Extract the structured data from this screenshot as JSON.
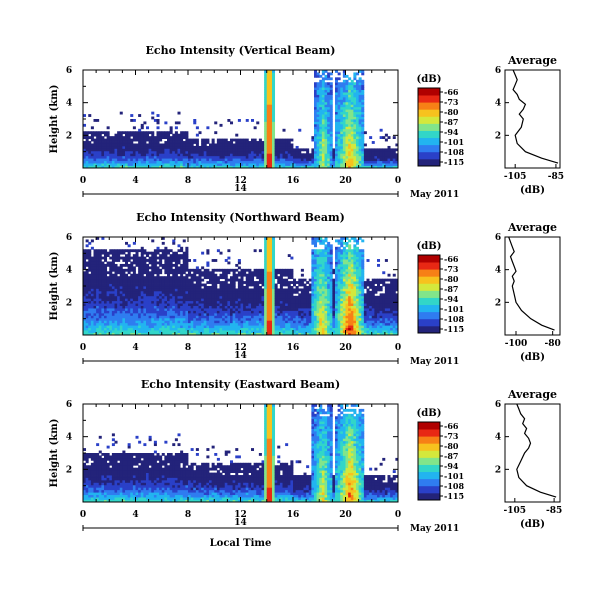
{
  "figure": {
    "time_axis_label": "Local Time",
    "date_label": "May 2011",
    "day_label": "14",
    "colorbar_unit": "(dB)",
    "colorbar_ticks": [
      "-66",
      "-73",
      "-80",
      "-87",
      "-94",
      "-101",
      "-108",
      "-115"
    ],
    "colorscale": [
      "#23237a",
      "#2a40c8",
      "#2f7cf0",
      "#22b4f0",
      "#32d6c8",
      "#82e58a",
      "#d4e83c",
      "#f7c21e",
      "#f78016",
      "#e82814",
      "#b00000"
    ]
  },
  "chart_data": [
    {
      "type": "heatmap",
      "title": "Echo Intensity (Vertical Beam)",
      "ylabel": "Height (km)",
      "xlabel": "",
      "x_ticks": [
        "0",
        "4",
        "8",
        "12",
        "16",
        "20",
        "0"
      ],
      "y_ticks": [
        "6",
        "4",
        "2"
      ],
      "xlim": [
        0,
        24
      ],
      "ylim": [
        0,
        6
      ],
      "clim": [
        -115,
        -66
      ],
      "beam": "vertical",
      "features": [
        {
          "kind": "background",
          "top_km": [
            2.2,
            1.8,
            1.2
          ],
          "noise": 0.55
        },
        {
          "kind": "rain",
          "start_h": 13.8,
          "end_h": 14.6,
          "peak": -66
        },
        {
          "kind": "cloud",
          "start_h": 17.6,
          "end_h": 19.0,
          "peak": -87
        },
        {
          "kind": "cloud",
          "start_h": 19.3,
          "end_h": 21.4,
          "peak": -80
        }
      ]
    },
    {
      "type": "line",
      "title": "Average",
      "xlabel": "(dB)",
      "x_ticks": [
        "-105",
        "-85"
      ],
      "y_ticks": [
        "6",
        "4",
        "2"
      ],
      "xlim": [
        -110,
        -83
      ],
      "ylim": [
        0,
        6
      ],
      "x": [
        -84,
        -92,
        -100,
        -104,
        -105,
        -102,
        -101,
        -103,
        -101,
        -100,
        -103,
        -104,
        -106,
        -105,
        -104,
        -105,
        -106
      ],
      "y": [
        0.3,
        0.6,
        1.0,
        1.5,
        2.0,
        2.5,
        3.0,
        3.3,
        3.6,
        3.9,
        4.2,
        4.5,
        4.8,
        5.1,
        5.4,
        5.7,
        6.0
      ]
    },
    {
      "type": "heatmap",
      "title": "Echo Intensity (Northward Beam)",
      "ylabel": "Height (km)",
      "xlabel": "",
      "x_ticks": [
        "0",
        "4",
        "8",
        "12",
        "16",
        "20",
        "0"
      ],
      "y_ticks": [
        "6",
        "4",
        "2"
      ],
      "xlim": [
        0,
        24
      ],
      "ylim": [
        0,
        6
      ],
      "clim": [
        -115,
        -66
      ],
      "beam": "northward",
      "features": [
        {
          "kind": "background",
          "top_km": [
            5.2,
            4.0,
            3.4
          ],
          "noise": 0.5
        },
        {
          "kind": "rain",
          "start_h": 13.8,
          "end_h": 14.6,
          "peak": -66
        },
        {
          "kind": "cloud",
          "start_h": 17.4,
          "end_h": 19.0,
          "peak": -80
        },
        {
          "kind": "cloud",
          "start_h": 19.3,
          "end_h": 21.4,
          "peak": -70
        }
      ]
    },
    {
      "type": "line",
      "title": "Average",
      "xlabel": "(dB)",
      "x_ticks": [
        "-100",
        "-80"
      ],
      "y_ticks": [
        "6",
        "4",
        "2"
      ],
      "xlim": [
        -106,
        -76
      ],
      "ylim": [
        0,
        6
      ],
      "x": [
        -79,
        -86,
        -92,
        -97,
        -100,
        -101,
        -102,
        -101,
        -102,
        -100,
        -101,
        -102,
        -103,
        -101,
        -102,
        -103,
        -104
      ],
      "y": [
        0.3,
        0.6,
        1.0,
        1.5,
        2.0,
        2.5,
        3.0,
        3.3,
        3.6,
        3.9,
        4.2,
        4.5,
        4.8,
        5.1,
        5.4,
        5.7,
        6.0
      ]
    },
    {
      "type": "heatmap",
      "title": "Echo Intensity (Eastward Beam)",
      "ylabel": "Height (km)",
      "xlabel": "",
      "x_ticks": [
        "0",
        "4",
        "8",
        "12",
        "16",
        "20",
        "0"
      ],
      "y_ticks": [
        "6",
        "4",
        "2"
      ],
      "xlim": [
        0,
        24
      ],
      "ylim": [
        0,
        6
      ],
      "clim": [
        -115,
        -66
      ],
      "beam": "eastward",
      "features": [
        {
          "kind": "background",
          "top_km": [
            3.0,
            2.4,
            1.7
          ],
          "noise": 0.55
        },
        {
          "kind": "rain",
          "start_h": 13.8,
          "end_h": 14.6,
          "peak": -66
        },
        {
          "kind": "cloud",
          "start_h": 17.5,
          "end_h": 19.0,
          "peak": -84
        },
        {
          "kind": "cloud",
          "start_h": 19.3,
          "end_h": 21.4,
          "peak": -75
        }
      ]
    },
    {
      "type": "line",
      "title": "Average",
      "xlabel": "(dB)",
      "x_ticks": [
        "-105",
        "-85"
      ],
      "y_ticks": [
        "6",
        "4",
        "2"
      ],
      "xlim": [
        -110,
        -82
      ],
      "ylim": [
        0,
        6
      ],
      "x": [
        -84,
        -92,
        -99,
        -103,
        -104,
        -102,
        -100,
        -98,
        -97,
        -98,
        -100,
        -99,
        -101,
        -100,
        -102,
        -103,
        -104
      ],
      "y": [
        0.3,
        0.6,
        1.0,
        1.5,
        2.0,
        2.5,
        3.0,
        3.3,
        3.6,
        3.9,
        4.2,
        4.5,
        4.8,
        5.1,
        5.4,
        5.7,
        6.0
      ]
    }
  ]
}
